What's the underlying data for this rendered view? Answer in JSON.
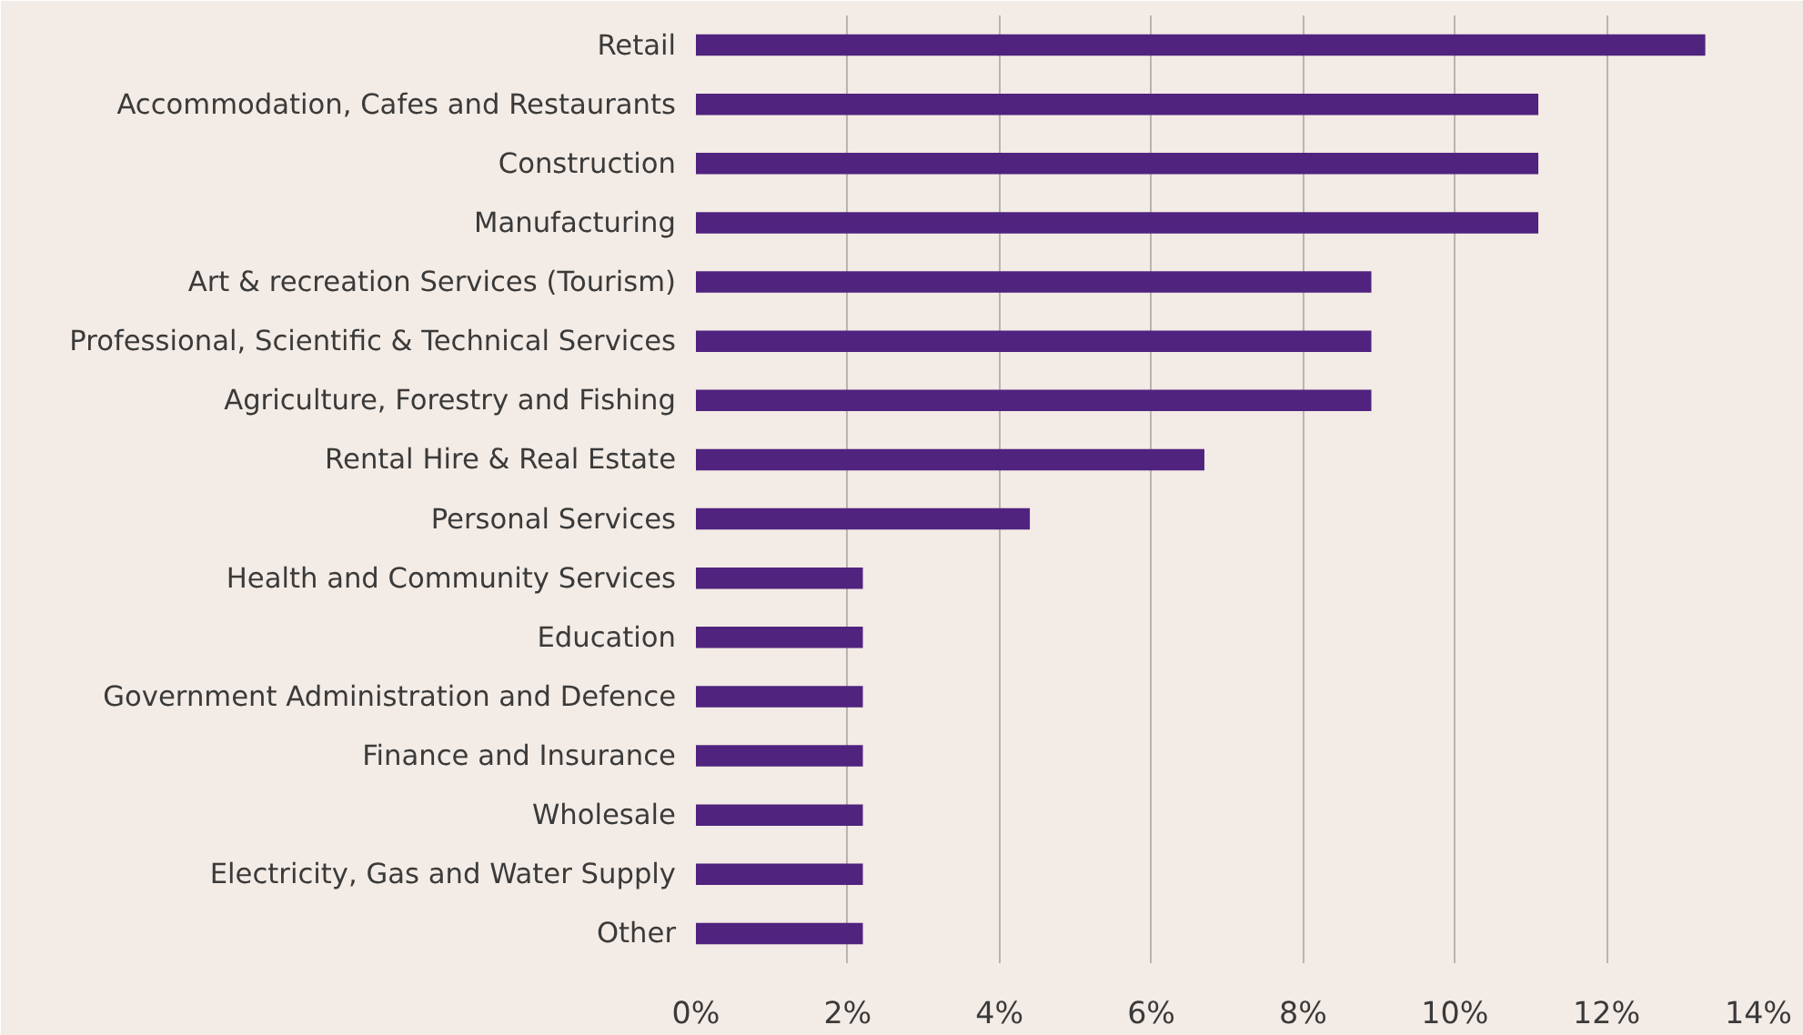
{
  "chart_data": {
    "type": "bar",
    "orientation": "horizontal",
    "categories": [
      "Retail",
      "Accommodation, Cafes and Restaurants",
      "Construction",
      "Manufacturing",
      "Art & recreation Services (Tourism)",
      "Professional, Scientific & Technical Services",
      "Agriculture, Forestry and Fishing",
      "Rental Hire & Real Estate",
      "Personal Services",
      "Health and Community Services",
      "Education",
      "Government Administration and Defence",
      "Finance and Insurance",
      "Wholesale",
      "Electricity, Gas and Water Supply",
      "Other"
    ],
    "values": [
      13.3,
      11.1,
      11.1,
      11.1,
      8.9,
      8.9,
      8.9,
      6.7,
      4.4,
      2.2,
      2.2,
      2.2,
      2.2,
      2.2,
      2.2,
      2.2
    ],
    "color": "#50237f",
    "xlim": [
      0,
      14
    ],
    "xticks": [
      {
        "value": 0,
        "label": "0%"
      },
      {
        "value": 2,
        "label": "2%"
      },
      {
        "value": 4,
        "label": "4%"
      },
      {
        "value": 6,
        "label": "6%"
      },
      {
        "value": 8,
        "label": "8%"
      },
      {
        "value": 10,
        "label": "10%"
      },
      {
        "value": 12,
        "label": "12%"
      },
      {
        "value": 14,
        "label": "14%"
      }
    ],
    "grid": "x"
  }
}
